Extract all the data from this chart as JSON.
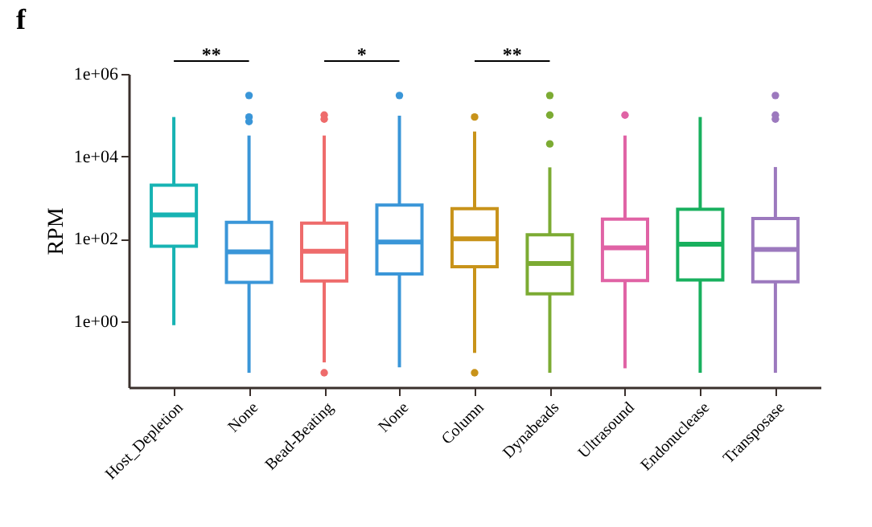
{
  "chart_data": {
    "type": "box",
    "title": "f",
    "ylabel": "RPM",
    "categories": [
      "Host_Depletion",
      "None",
      "Bead-Beating",
      "None",
      "Column",
      "Dynabeads",
      "Ultrasound",
      "Endonuclease",
      "Transposase"
    ],
    "colors": [
      "#17b3b3",
      "#3a96d8",
      "#ee6b6b",
      "#3a96d8",
      "#c8931a",
      "#7cab33",
      "#e063a5",
      "#18b05e",
      "#9c79be"
    ],
    "boxes": [
      {
        "low": 0.8,
        "q1": 66,
        "median": 380,
        "q3": 2000,
        "high": 90000
      },
      {
        "low": 0.056,
        "q1": 8.7,
        "median": 48,
        "q3": 250,
        "high": 32000,
        "outliers": [
          300000,
          90000,
          70000
        ]
      },
      {
        "low": 0.1,
        "q1": 9.5,
        "median": 50,
        "q3": 240,
        "high": 32000,
        "outliers": [
          100000,
          80000,
          0.056
        ]
      },
      {
        "low": 0.076,
        "q1": 14,
        "median": 83,
        "q3": 660,
        "high": 97000,
        "outliers": [
          300000
        ]
      },
      {
        "low": 0.17,
        "q1": 21,
        "median": 100,
        "q3": 540,
        "high": 40000,
        "outliers": [
          90000,
          0.056
        ]
      },
      {
        "low": 0.056,
        "q1": 4.6,
        "median": 25,
        "q3": 125,
        "high": 5400,
        "outliers": [
          300000,
          100000,
          20000
        ]
      },
      {
        "low": 0.072,
        "q1": 9.7,
        "median": 60,
        "q3": 300,
        "high": 32000,
        "outliers": [
          100000
        ]
      },
      {
        "low": 0.056,
        "q1": 10,
        "median": 74,
        "q3": 520,
        "high": 90000
      },
      {
        "low": 0.056,
        "q1": 9,
        "median": 55,
        "q3": 310,
        "high": 5500,
        "outliers": [
          300000,
          100000,
          80000
        ]
      }
    ],
    "log": "y",
    "ylim": [
      0.025,
      1000000
    ],
    "yticks": [
      {
        "value": 1,
        "label": "1e+00"
      },
      {
        "value": 100,
        "label": "1e+02"
      },
      {
        "value": 10000,
        "label": "1e+04"
      },
      {
        "value": 1000000,
        "label": "1e+06"
      }
    ],
    "grid": false,
    "legend": false,
    "annotations": [
      "**",
      "*",
      "**"
    ]
  }
}
